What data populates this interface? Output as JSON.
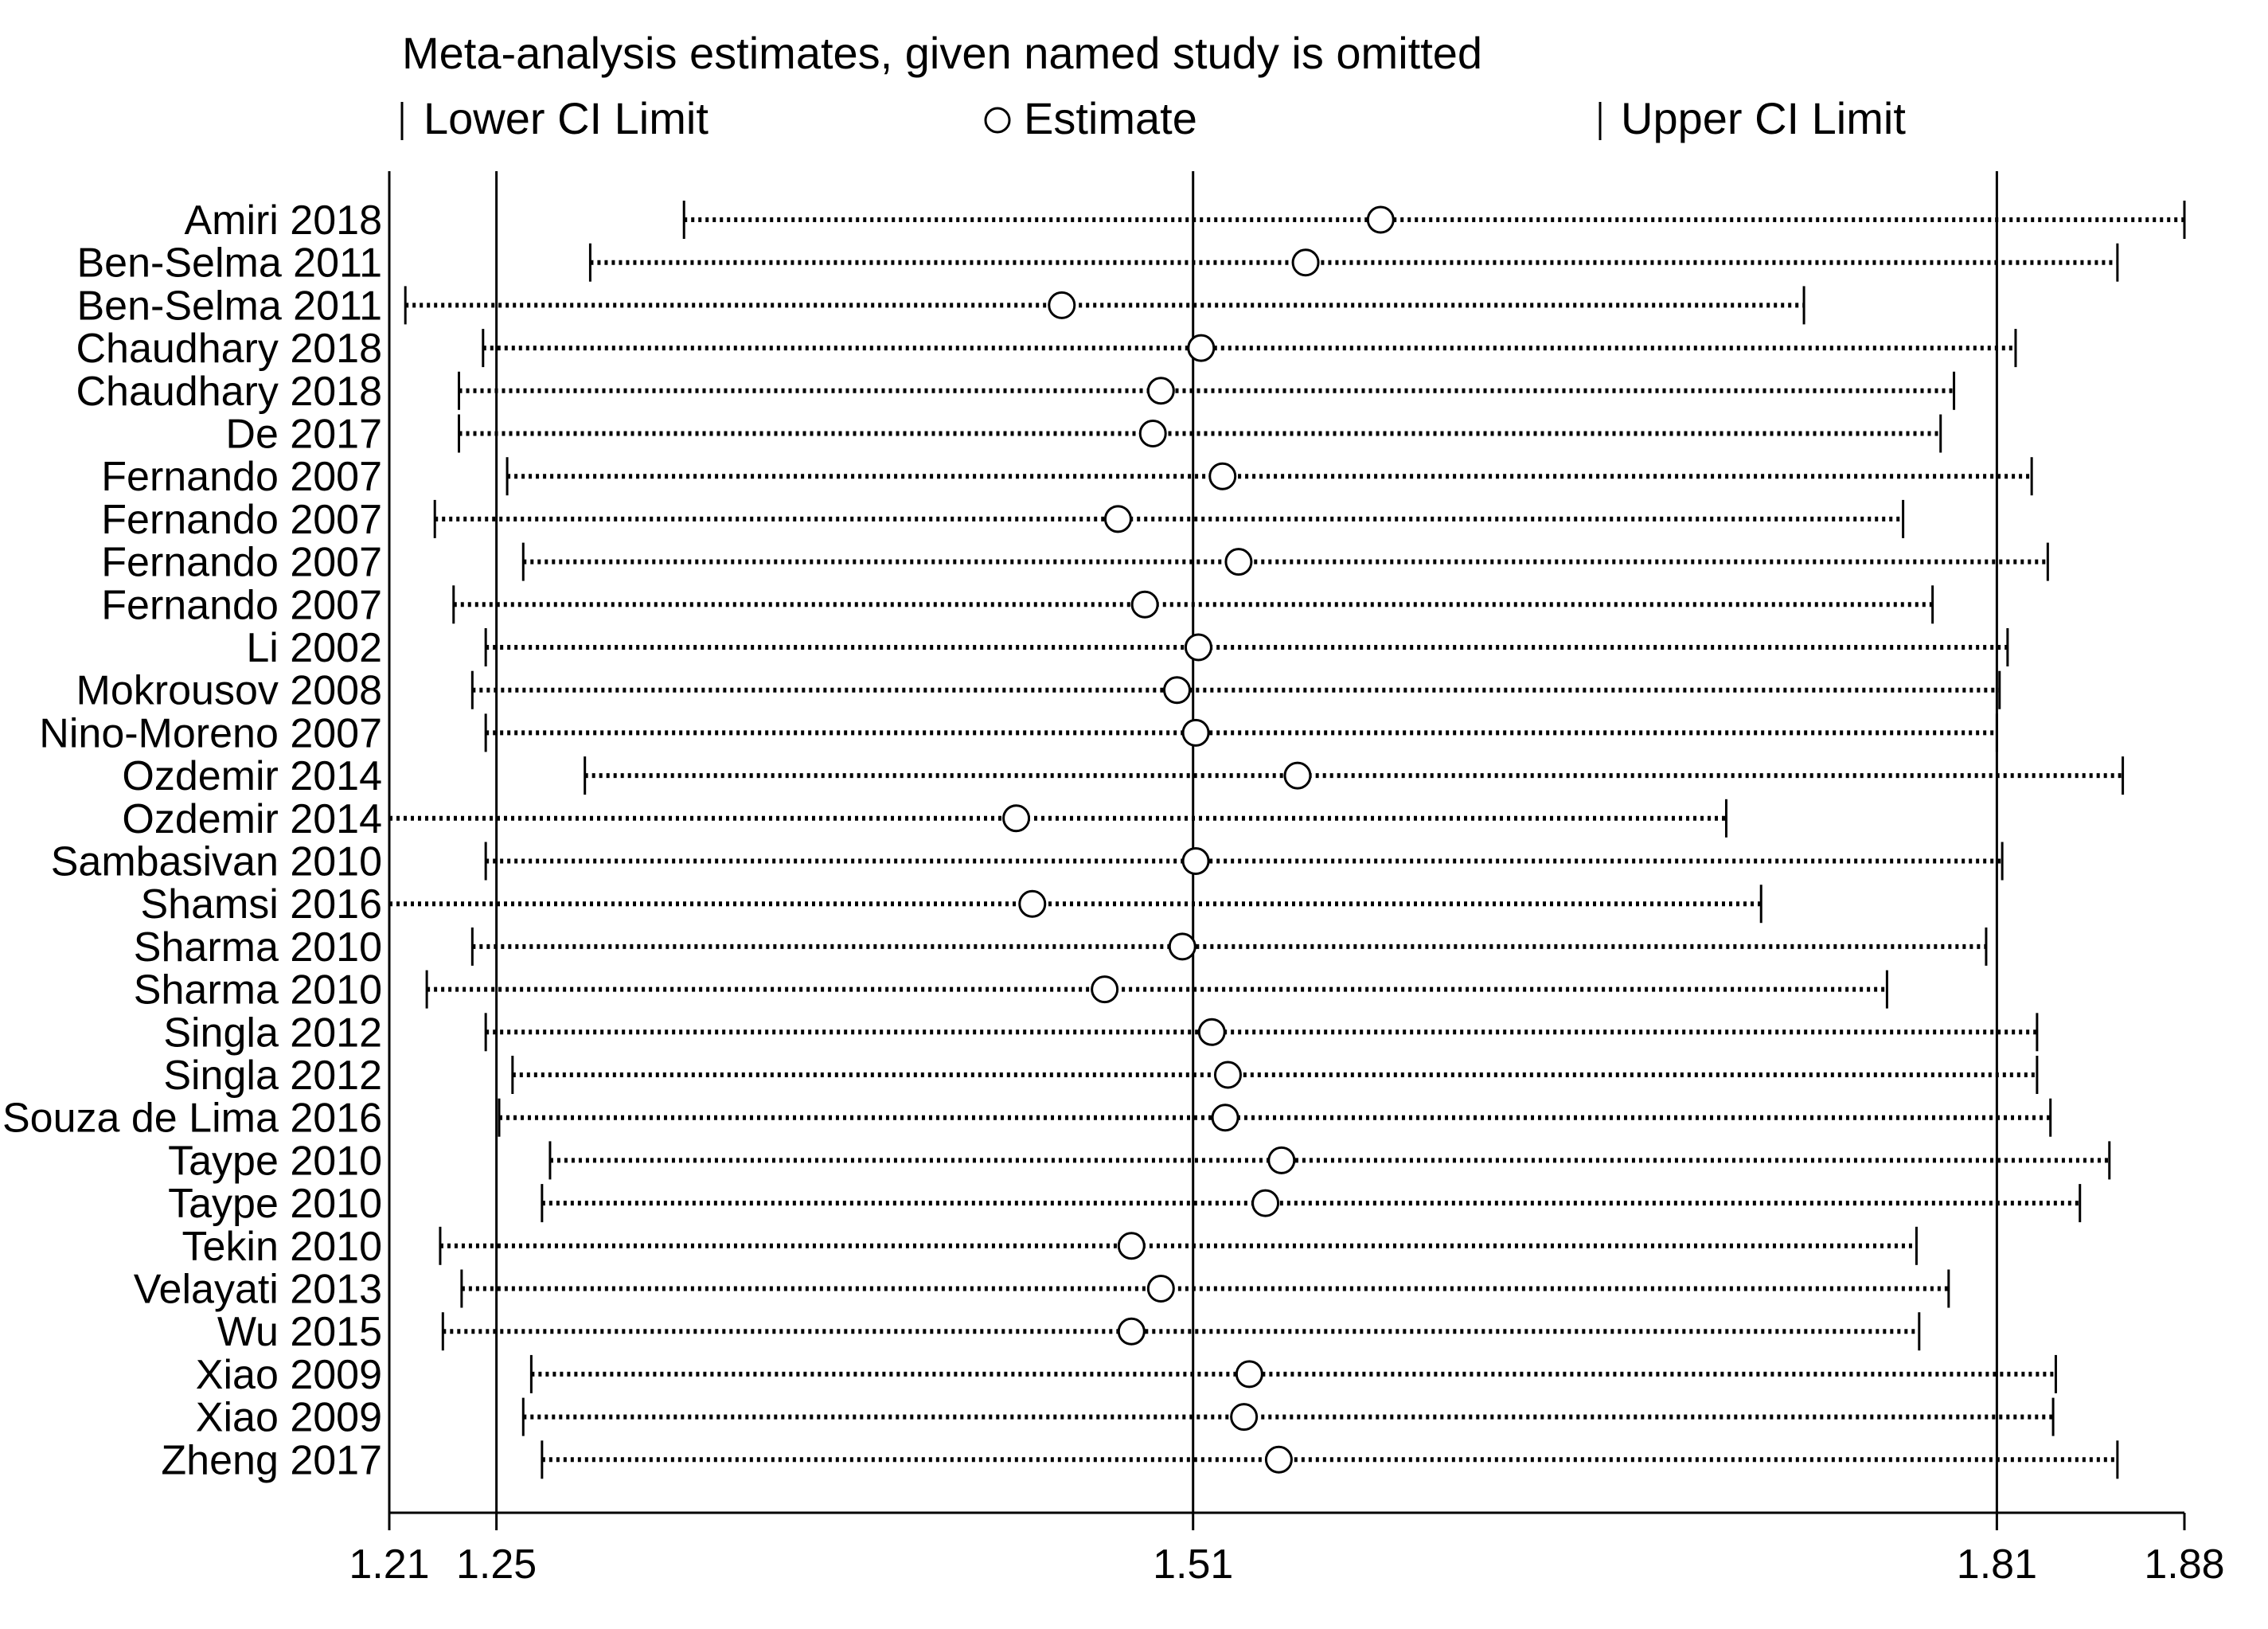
{
  "chart_data": {
    "type": "scatter",
    "title": "Meta-analysis estimates, given named study is omitted",
    "legend": {
      "placement": "top",
      "entries": [
        {
          "symbol": "|",
          "label": "Lower CI Limit"
        },
        {
          "symbol": "○",
          "label": "Estimate"
        },
        {
          "symbol": "|",
          "label": "Upper CI Limit"
        }
      ]
    },
    "xlim": [
      1.21,
      1.88
    ],
    "x_ticks": [
      {
        "value": 1.21,
        "label": "1.21"
      },
      {
        "value": 1.25,
        "label": "1.25"
      },
      {
        "value": 1.51,
        "label": "1.51"
      },
      {
        "value": 1.81,
        "label": "1.81"
      },
      {
        "value": 1.88,
        "label": "1.88"
      }
    ],
    "reference_lines": [
      1.25,
      1.51,
      1.81
    ],
    "studies": [
      {
        "label": "Amiri 2018",
        "lower": 1.32,
        "estimate": 1.58,
        "upper": 1.88
      },
      {
        "label": "Ben-Selma 2011",
        "lower": 1.285,
        "estimate": 1.552,
        "upper": 1.855
      },
      {
        "label": "Ben-Selma 2011",
        "lower": 1.216,
        "estimate": 1.461,
        "upper": 1.738
      },
      {
        "label": "Chaudhary 2018",
        "lower": 1.245,
        "estimate": 1.513,
        "upper": 1.817
      },
      {
        "label": "Chaudhary 2018",
        "lower": 1.236,
        "estimate": 1.498,
        "upper": 1.794
      },
      {
        "label": "De 2017",
        "lower": 1.236,
        "estimate": 1.495,
        "upper": 1.789
      },
      {
        "label": "Fernando 2007",
        "lower": 1.254,
        "estimate": 1.521,
        "upper": 1.823
      },
      {
        "label": "Fernando 2007",
        "lower": 1.227,
        "estimate": 1.482,
        "upper": 1.775
      },
      {
        "label": "Fernando 2007",
        "lower": 1.26,
        "estimate": 1.527,
        "upper": 1.829
      },
      {
        "label": "Fernando 2007",
        "lower": 1.234,
        "estimate": 1.492,
        "upper": 1.786
      },
      {
        "label": "Li 2002",
        "lower": 1.246,
        "estimate": 1.512,
        "upper": 1.814
      },
      {
        "label": "Mokrousov 2008",
        "lower": 1.241,
        "estimate": 1.504,
        "upper": 1.811
      },
      {
        "label": "Nino-Moreno 2007",
        "lower": 1.246,
        "estimate": 1.511,
        "upper": 1.81
      },
      {
        "label": "Ozdemir 2014",
        "lower": 1.283,
        "estimate": 1.549,
        "upper": 1.857
      },
      {
        "label": "Ozdemir 2014",
        "lower": 1.21,
        "estimate": 1.444,
        "upper": 1.709
      },
      {
        "label": "Sambasivan 2010",
        "lower": 1.246,
        "estimate": 1.511,
        "upper": 1.812
      },
      {
        "label": "Shamsi 2016",
        "lower": 1.21,
        "estimate": 1.45,
        "upper": 1.722
      },
      {
        "label": "Sharma 2010",
        "lower": 1.241,
        "estimate": 1.506,
        "upper": 1.806
      },
      {
        "label": "Sharma 2010",
        "lower": 1.224,
        "estimate": 1.477,
        "upper": 1.769
      },
      {
        "label": "Singla 2012",
        "lower": 1.246,
        "estimate": 1.517,
        "upper": 1.825
      },
      {
        "label": "Singla 2012",
        "lower": 1.256,
        "estimate": 1.523,
        "upper": 1.825
      },
      {
        "label": "Souza de Lima 2016",
        "lower": 1.251,
        "estimate": 1.522,
        "upper": 1.83
      },
      {
        "label": "Taype 2010",
        "lower": 1.27,
        "estimate": 1.543,
        "upper": 1.852
      },
      {
        "label": "Taype 2010",
        "lower": 1.267,
        "estimate": 1.537,
        "upper": 1.841
      },
      {
        "label": "Tekin 2010",
        "lower": 1.229,
        "estimate": 1.487,
        "upper": 1.78
      },
      {
        "label": "Velayati 2013",
        "lower": 1.237,
        "estimate": 1.498,
        "upper": 1.792
      },
      {
        "label": "Wu 2015",
        "lower": 1.23,
        "estimate": 1.487,
        "upper": 1.781
      },
      {
        "label": "Xiao 2009",
        "lower": 1.263,
        "estimate": 1.531,
        "upper": 1.832
      },
      {
        "label": "Xiao 2009",
        "lower": 1.26,
        "estimate": 1.529,
        "upper": 1.831
      },
      {
        "label": "Zheng 2017",
        "lower": 1.267,
        "estimate": 1.542,
        "upper": 1.855
      }
    ]
  }
}
